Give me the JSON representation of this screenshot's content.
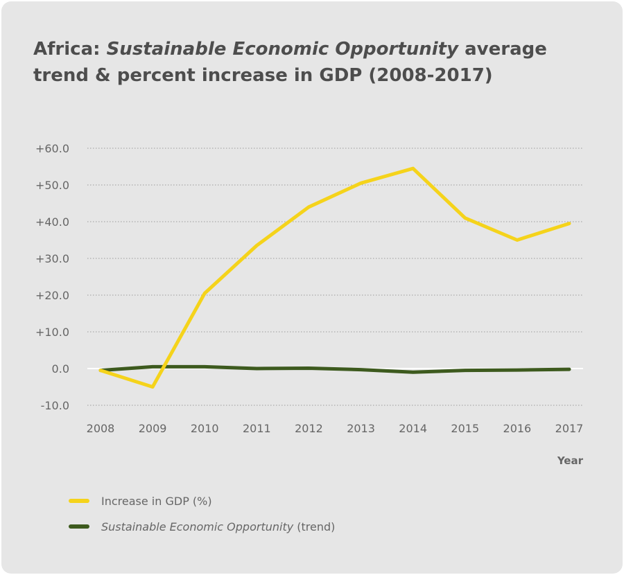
{
  "title": {
    "prefix": "Africa: ",
    "emphasis": "Sustainable Economic Opportunity",
    "suffix": " average trend & percent increase in GDP (2008-2017)"
  },
  "colors": {
    "background": "#e6e6e6",
    "gdp_line": "#f5d31b",
    "trend_line": "#3d5a1e",
    "grid": "#9a9a9a",
    "text": "#666666"
  },
  "chart_data": {
    "type": "line",
    "title": "Africa: Sustainable Economic Opportunity average trend & percent increase in GDP (2008-2017)",
    "xlabel": "Year",
    "ylabel": "",
    "x": [
      "2008",
      "2009",
      "2010",
      "2011",
      "2012",
      "2013",
      "2014",
      "2015",
      "2016",
      "2017"
    ],
    "ylim": [
      -10,
      60
    ],
    "yticks": [
      "+60.0",
      "+50.0",
      "+40.0",
      "+30.0",
      "+20.0",
      "+10.0",
      "0.0",
      "-10.0"
    ],
    "ytick_values": [
      60,
      50,
      40,
      30,
      20,
      10,
      0,
      -10
    ],
    "grid": "horizontal dotted",
    "legend_position": "bottom-left",
    "series": [
      {
        "name": "Increase in GDP (%)",
        "color": "#f5d31b",
        "values": [
          -0.5,
          -5.0,
          20.5,
          33.5,
          44.0,
          50.5,
          54.5,
          41.0,
          35.0,
          39.5
        ]
      },
      {
        "name": "Sustainable Economic Opportunity (trend)",
        "name_emphasis": "Sustainable Economic Opportunity",
        "name_suffix": " (trend)",
        "color": "#3d5a1e",
        "values": [
          -0.5,
          0.5,
          0.5,
          0.0,
          0.1,
          -0.3,
          -1.0,
          -0.5,
          -0.4,
          -0.2
        ]
      }
    ]
  }
}
